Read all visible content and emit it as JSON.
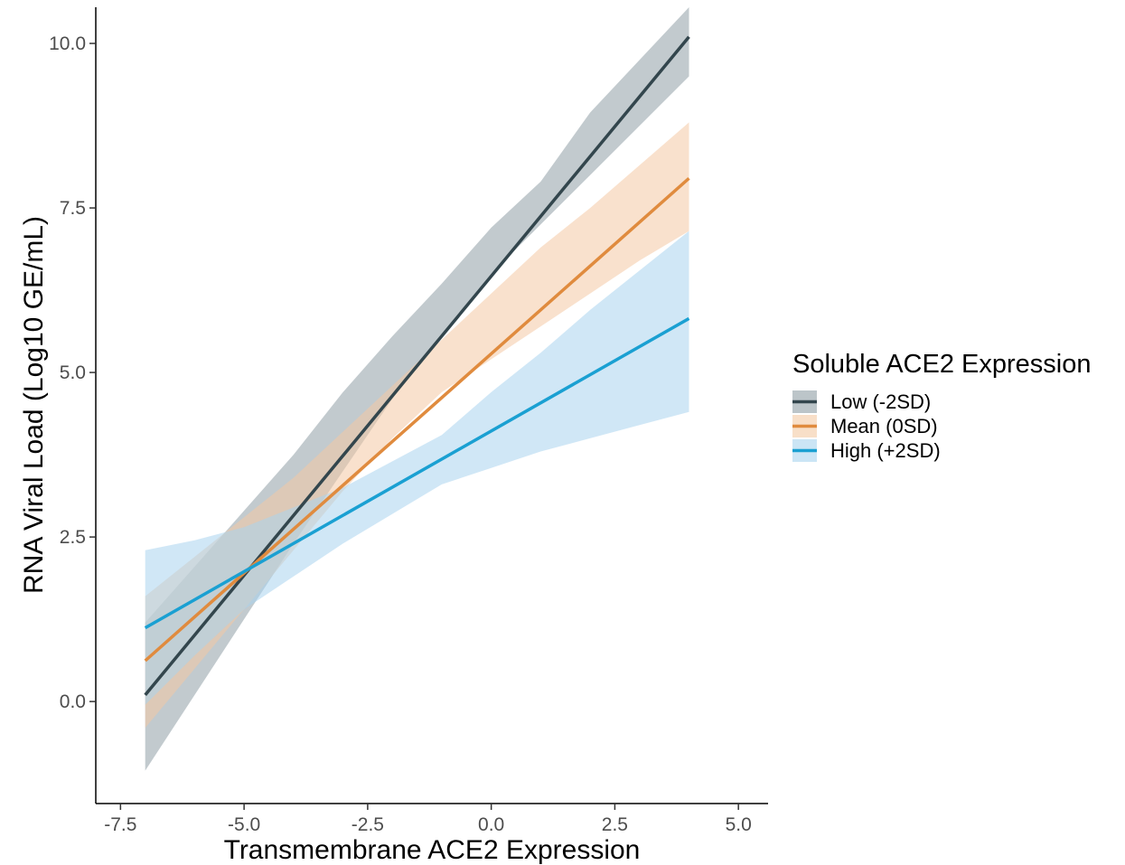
{
  "chart_data": {
    "type": "line",
    "xlabel": "Transmembrane ACE2 Expression",
    "ylabel": "RNA Viral Load (Log10 GE/mL)",
    "xlim": [
      -8.0,
      5.6
    ],
    "ylim": [
      -1.55,
      10.55
    ],
    "x_ticks": [
      "-7.5",
      "-5.0",
      "-2.5",
      "0.0",
      "2.5",
      "5.0"
    ],
    "y_ticks": [
      "0.0",
      "2.5",
      "5.0",
      "7.5",
      "10.0"
    ],
    "grid": false,
    "legend": {
      "title": "Soluble ACE2 Expression",
      "position": "right"
    },
    "series": [
      {
        "name": "Low (-2SD)",
        "color": "#33464d",
        "band_color": "#8f9fa5",
        "x": [
          -7,
          4
        ],
        "y": [
          0.1,
          10.1
        ],
        "ci_x": [
          -7,
          -6,
          -5,
          -4,
          -3,
          -2,
          -1,
          0,
          1,
          2,
          3,
          4
        ],
        "ci_lower": [
          -1.05,
          0.1,
          1.25,
          2.4,
          3.5,
          4.6,
          5.55,
          6.5,
          7.25,
          8.0,
          8.75,
          9.5
        ],
        "ci_upper": [
          1.2,
          2.05,
          2.9,
          3.75,
          4.7,
          5.55,
          6.35,
          7.2,
          7.9,
          8.95,
          9.75,
          10.55
        ]
      },
      {
        "name": "Mean (0SD)",
        "color": "#e08b3e",
        "band_color": "#f4c9a4",
        "x": [
          -7,
          4
        ],
        "y": [
          0.62,
          7.95
        ],
        "ci_x": [
          -7,
          -6,
          -5,
          -4,
          -3,
          -2,
          -1,
          0,
          1,
          2,
          3,
          4
        ],
        "ci_lower": [
          -0.4,
          0.5,
          1.4,
          2.3,
          3.2,
          4.0,
          4.7,
          5.2,
          5.7,
          6.2,
          6.7,
          7.15
        ],
        "ci_upper": [
          1.6,
          2.2,
          2.8,
          3.4,
          4.1,
          4.8,
          5.5,
          6.2,
          6.9,
          7.5,
          8.15,
          8.8
        ]
      },
      {
        "name": "High (+2SD)",
        "color": "#1aa0d2",
        "band_color": "#a9d4ee",
        "x": [
          -7,
          4
        ],
        "y": [
          1.12,
          5.82
        ],
        "ci_x": [
          -7,
          -6,
          -5,
          -4,
          -3,
          -2,
          -1,
          0,
          1,
          2,
          3,
          4
        ],
        "ci_lower": [
          -0.05,
          0.7,
          1.4,
          1.9,
          2.4,
          2.85,
          3.3,
          3.55,
          3.8,
          4.0,
          4.2,
          4.4
        ],
        "ci_upper": [
          2.3,
          2.45,
          2.65,
          2.95,
          3.25,
          3.65,
          4.05,
          4.7,
          5.3,
          5.95,
          6.55,
          7.15
        ]
      }
    ]
  }
}
